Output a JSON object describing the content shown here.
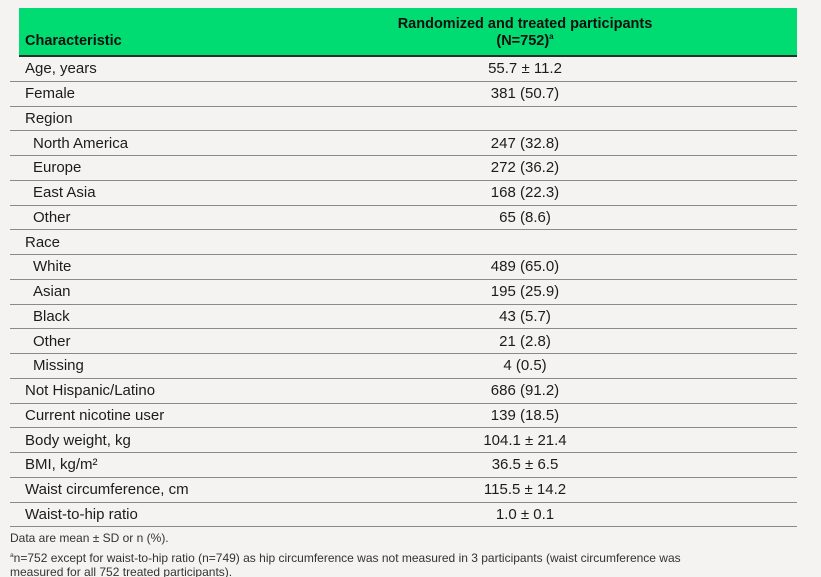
{
  "colors": {
    "header_green": "#00DC72",
    "page_background": "#f4f3f1",
    "divider_gray": "#8a8a8a"
  },
  "header": {
    "characteristic_label": "Characteristic",
    "group_title": "Randomized and treated participants",
    "group_n": "(N=752)",
    "group_n_superscript": "a"
  },
  "table": {
    "rows": [
      {
        "label": "Age, years",
        "value": "55.7 ± 11.2",
        "indent": false
      },
      {
        "label": "Female",
        "value": "381 (50.7)",
        "indent": false
      },
      {
        "label": "Region",
        "value": "",
        "indent": false
      },
      {
        "label": "North America",
        "value": "247 (32.8)",
        "indent": true
      },
      {
        "label": "Europe",
        "value": "272 (36.2)",
        "indent": true
      },
      {
        "label": "East Asia",
        "value": "168 (22.3)",
        "indent": true
      },
      {
        "label": "Other",
        "value": "65 (8.6)",
        "indent": true
      },
      {
        "label": "Race",
        "value": "",
        "indent": false
      },
      {
        "label": "White",
        "value": "489 (65.0)",
        "indent": true
      },
      {
        "label": "Asian",
        "value": "195 (25.9)",
        "indent": true
      },
      {
        "label": "Black",
        "value": "43 (5.7)",
        "indent": true
      },
      {
        "label": "Other",
        "value": "21 (2.8)",
        "indent": true
      },
      {
        "label": "Missing",
        "value": "4 (0.5)",
        "indent": true
      },
      {
        "label": "Not Hispanic/Latino",
        "value": "686 (91.2)",
        "indent": false
      },
      {
        "label": "Current nicotine user",
        "value": "139 (18.5)",
        "indent": false
      },
      {
        "label": "Body weight, kg",
        "value": "104.1 ± 21.4",
        "indent": false
      },
      {
        "label": "BMI, kg/m²",
        "value": "36.5 ± 6.5",
        "indent": false
      },
      {
        "label": "Waist circumference, cm",
        "value": "115.5 ± 14.2",
        "indent": false
      },
      {
        "label": "Waist-to-hip ratio",
        "value": "1.0 ± 0.1",
        "indent": false
      }
    ]
  },
  "footnotes": {
    "data_note": "Data are mean ± SD or n (%).",
    "note_a_marker": "a",
    "note_a_text": "n=752 except for waist-to-hip ratio (n=749) as hip circumference was not measured in 3 participants (waist circumference was measured for all 752 treated participants)."
  }
}
